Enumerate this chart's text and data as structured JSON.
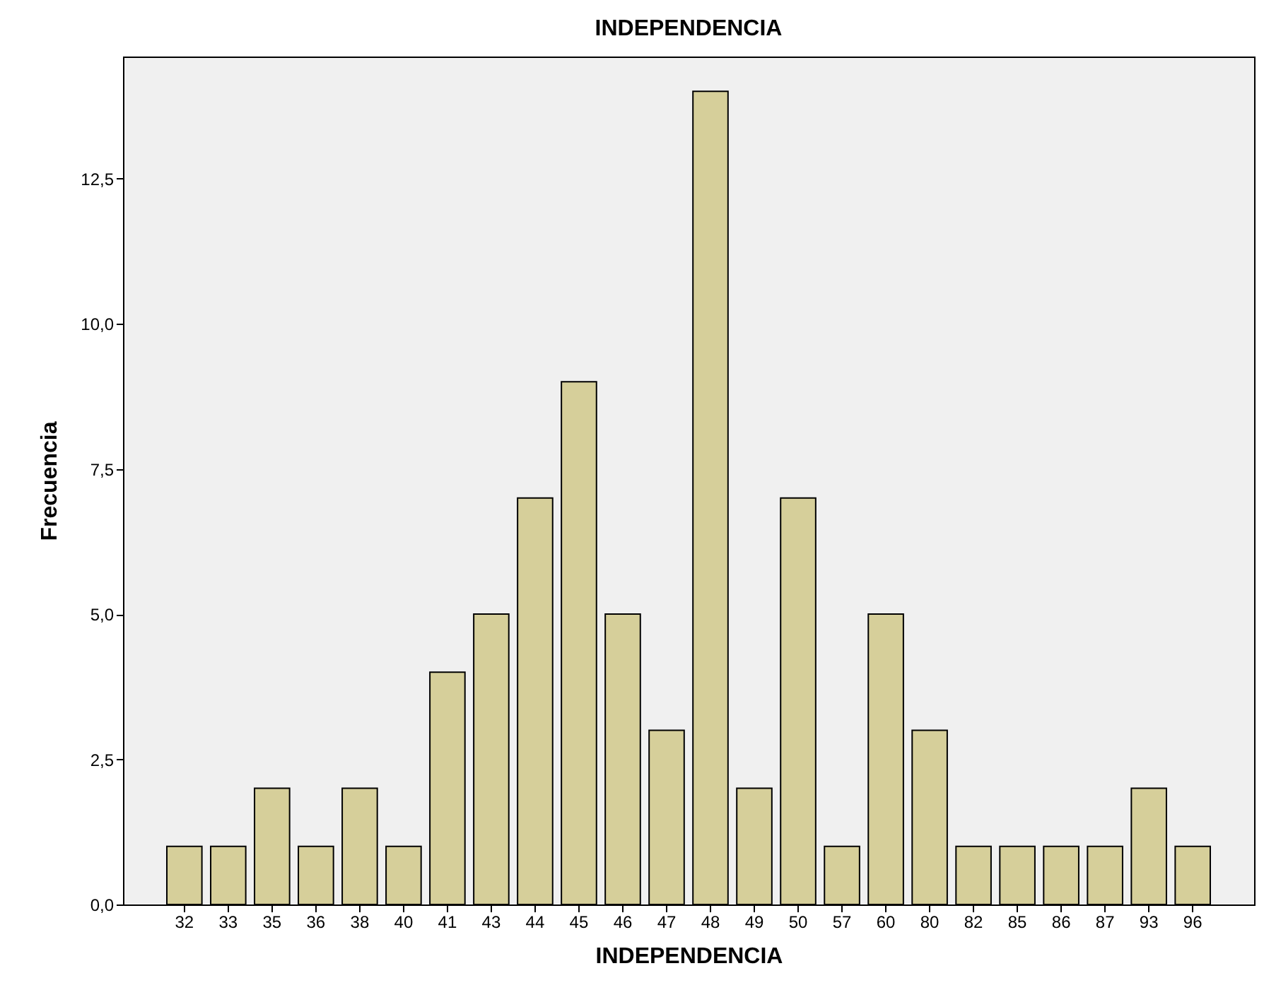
{
  "chart_data": {
    "type": "bar",
    "title": "INDEPENDENCIA",
    "xlabel": "INDEPENDENCIA",
    "ylabel": "Frecuencia",
    "categories": [
      "32",
      "33",
      "35",
      "36",
      "38",
      "40",
      "41",
      "43",
      "44",
      "45",
      "46",
      "47",
      "48",
      "49",
      "50",
      "57",
      "60",
      "80",
      "82",
      "85",
      "86",
      "87",
      "93",
      "96"
    ],
    "values": [
      1,
      1,
      2,
      1,
      2,
      1,
      4,
      5,
      7,
      9,
      5,
      3,
      14,
      2,
      7,
      1,
      5,
      3,
      1,
      1,
      1,
      1,
      2,
      1
    ],
    "color": "#d6cf9a",
    "ylim": [
      0,
      14.6
    ],
    "yticks": [
      {
        "value": 0,
        "label": "0,0"
      },
      {
        "value": 2.5,
        "label": "2,5"
      },
      {
        "value": 5,
        "label": "5,0"
      },
      {
        "value": 7.5,
        "label": "7,5"
      },
      {
        "value": 10,
        "label": "10,0"
      },
      {
        "value": 12.5,
        "label": "12,5"
      }
    ],
    "grid": false
  }
}
